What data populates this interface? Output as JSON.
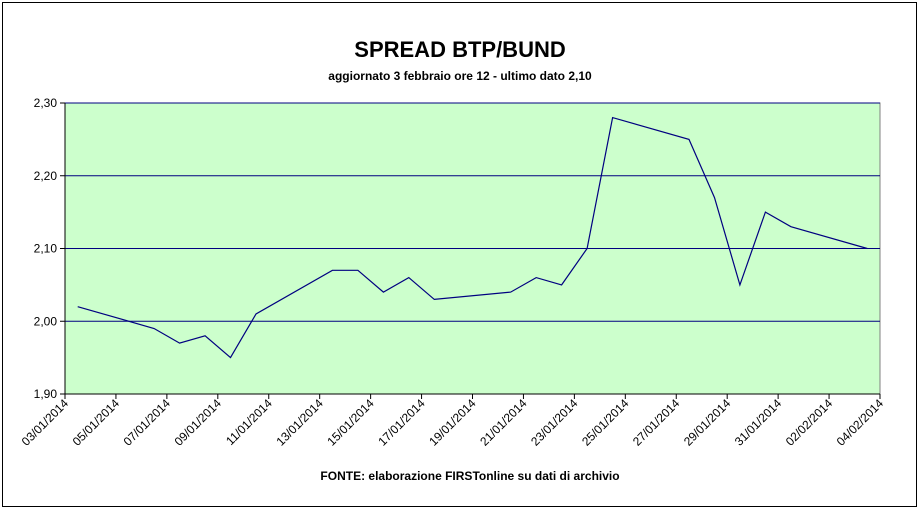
{
  "chart_data": {
    "type": "line",
    "title": "SPREAD BTP/BUND",
    "subtitle": "aggiornato 3 febbraio ore 12 - ultimo dato 2,10",
    "source": "FONTE:  elaborazione FIRSTonline su dati di archivio",
    "x": [
      "2014-01-03",
      "2014-01-06",
      "2014-01-07",
      "2014-01-08",
      "2014-01-09",
      "2014-01-10",
      "2014-01-13",
      "2014-01-14",
      "2014-01-15",
      "2014-01-16",
      "2014-01-17",
      "2014-01-20",
      "2014-01-21",
      "2014-01-22",
      "2014-01-23",
      "2014-01-24",
      "2014-01-27",
      "2014-01-28",
      "2014-01-29",
      "2014-01-30",
      "2014-01-31",
      "2014-02-03"
    ],
    "values": [
      2.02,
      1.99,
      1.97,
      1.98,
      1.95,
      2.01,
      2.07,
      2.07,
      2.04,
      2.06,
      2.03,
      2.04,
      2.06,
      2.05,
      2.1,
      2.28,
      2.25,
      2.17,
      2.05,
      2.15,
      2.13,
      2.1
    ],
    "color": "#000080",
    "xlim": [
      "2014-01-03",
      "2014-02-04"
    ],
    "xticks": [
      {
        "value": "2014-01-03",
        "label": "03/01/2014"
      },
      {
        "value": "2014-01-05",
        "label": "05/01/2014"
      },
      {
        "value": "2014-01-07",
        "label": "07/01/2014"
      },
      {
        "value": "2014-01-09",
        "label": "09/01/2014"
      },
      {
        "value": "2014-01-11",
        "label": "11/01/2014"
      },
      {
        "value": "2014-01-13",
        "label": "13/01/2014"
      },
      {
        "value": "2014-01-15",
        "label": "15/01/2014"
      },
      {
        "value": "2014-01-17",
        "label": "17/01/2014"
      },
      {
        "value": "2014-01-19",
        "label": "19/01/2014"
      },
      {
        "value": "2014-01-21",
        "label": "21/01/2014"
      },
      {
        "value": "2014-01-23",
        "label": "23/01/2014"
      },
      {
        "value": "2014-01-25",
        "label": "25/01/2014"
      },
      {
        "value": "2014-01-27",
        "label": "27/01/2014"
      },
      {
        "value": "2014-01-29",
        "label": "29/01/2014"
      },
      {
        "value": "2014-01-31",
        "label": "31/01/2014"
      },
      {
        "value": "2014-02-02",
        "label": "02/02/2014"
      },
      {
        "value": "2014-02-04",
        "label": "04/02/2014"
      }
    ],
    "ylim": [
      1.9,
      2.3
    ],
    "yticks": [
      {
        "value": 1.9,
        "label": "1,90"
      },
      {
        "value": 2.0,
        "label": "2,00"
      },
      {
        "value": 2.1,
        "label": "2,10"
      },
      {
        "value": 2.2,
        "label": "2,20"
      },
      {
        "value": 2.3,
        "label": "2,30"
      }
    ],
    "grid": true,
    "plot_background": "#ccffcc",
    "grid_color": "#000080"
  }
}
